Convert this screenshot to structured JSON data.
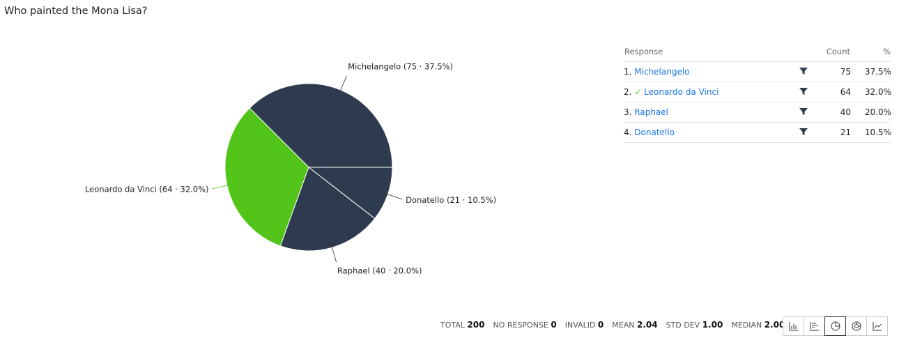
{
  "question": "Who painted the Mona Lisa?",
  "chart_data": {
    "type": "pie",
    "categories": [
      "Michelangelo",
      "Leonardo da Vinci",
      "Raphael",
      "Donatello"
    ],
    "values": [
      75,
      64,
      40,
      21
    ],
    "value_labels": [
      "Michelangelo (75 · 37.5%)",
      "Leonardo da Vinci (64 · 32.0%)",
      "Raphael (40 · 20.0%)",
      "Donatello (21 · 10.5%)"
    ],
    "colors": [
      "#2e3b4e",
      "#52c41a",
      "#2e3b4e",
      "#2e3b4e"
    ]
  },
  "table": {
    "header": [
      "Response",
      "Count",
      "%"
    ],
    "rows": [
      {
        "rank": "1.",
        "name": "Michelangelo",
        "count": "75",
        "percent": "37.5%"
      },
      {
        "rank": "2.",
        "mark": "✓",
        "name": "Leonardo da Vinci",
        "count": "64",
        "percent": "32.0%"
      },
      {
        "rank": "3.",
        "name": "Raphael",
        "count": "40",
        "percent": "20.0%"
      },
      {
        "rank": "4.",
        "name": "Donatello",
        "count": "21",
        "percent": "10.5%"
      }
    ]
  },
  "stats": [
    {
      "label": "TOTAL",
      "value": "200"
    },
    {
      "label": "NO RESPONSE",
      "value": "0"
    },
    {
      "label": "INVALID",
      "value": "0"
    },
    {
      "label": "MEAN",
      "value": "2.04"
    },
    {
      "label": "STD DEV",
      "value": "1.00"
    },
    {
      "label": "MEDIAN",
      "value": "2.00"
    }
  ]
}
